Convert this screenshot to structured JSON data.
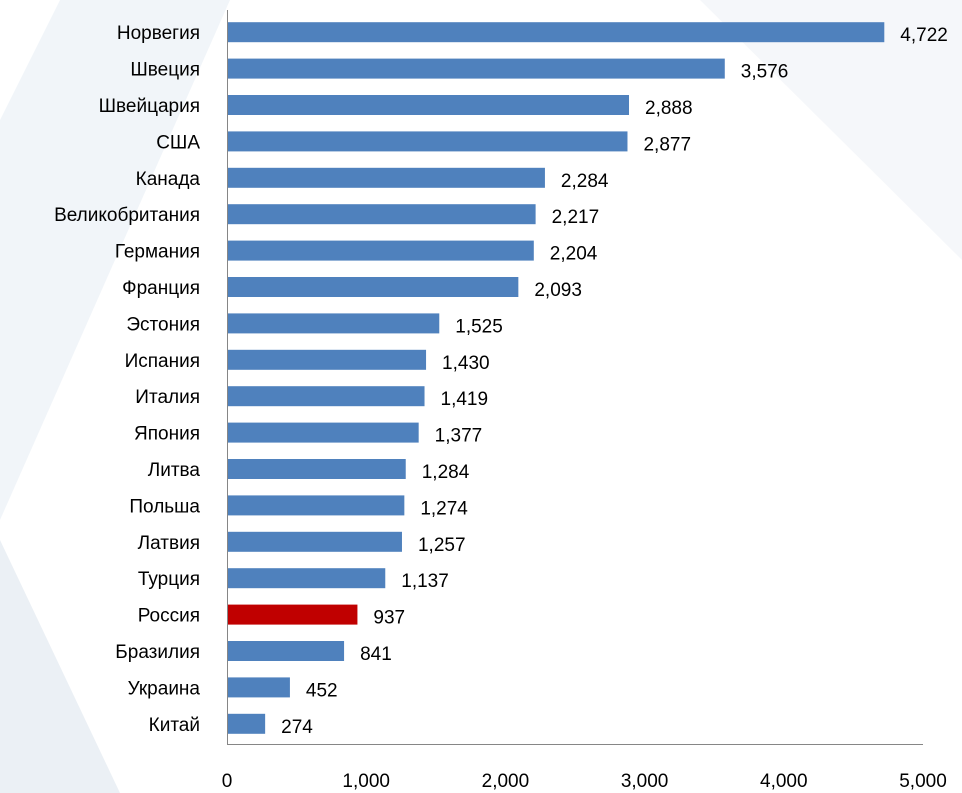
{
  "chart_data": {
    "type": "bar",
    "orientation": "horizontal",
    "categories": [
      "Норвегия",
      "Швеция",
      "Швейцария",
      "США",
      "Канада",
      "Великобритания",
      "Германия",
      "Франция",
      "Эстония",
      "Испания",
      "Италия",
      "Япония",
      "Литва",
      "Польша",
      "Латвия",
      "Турция",
      "Россия",
      "Бразилия",
      "Украина",
      "Китай"
    ],
    "values": [
      4722,
      3576,
      2888,
      2877,
      2284,
      2217,
      2204,
      2093,
      1525,
      1430,
      1419,
      1377,
      1284,
      1274,
      1257,
      1137,
      937,
      841,
      452,
      274
    ],
    "value_labels": [
      "4,722",
      "3,576",
      "2,888",
      "2,877",
      "2,284",
      "2,217",
      "2,204",
      "2,093",
      "1,525",
      "1,430",
      "1,419",
      "1,377",
      "1,284",
      "1,274",
      "1,257",
      "1,137",
      "937",
      "841",
      "452",
      "274"
    ],
    "xlim": [
      0,
      5000
    ],
    "xticks": [
      0,
      1000,
      2000,
      3000,
      4000,
      5000
    ],
    "xtick_labels": [
      "0",
      "1,000",
      "2,000",
      "3,000",
      "4,000",
      "5,000"
    ],
    "grid": false,
    "legend": "none",
    "colors": {
      "default": "#4F81BD",
      "highlight": "#C00000",
      "highlight_category": "Россия"
    }
  }
}
